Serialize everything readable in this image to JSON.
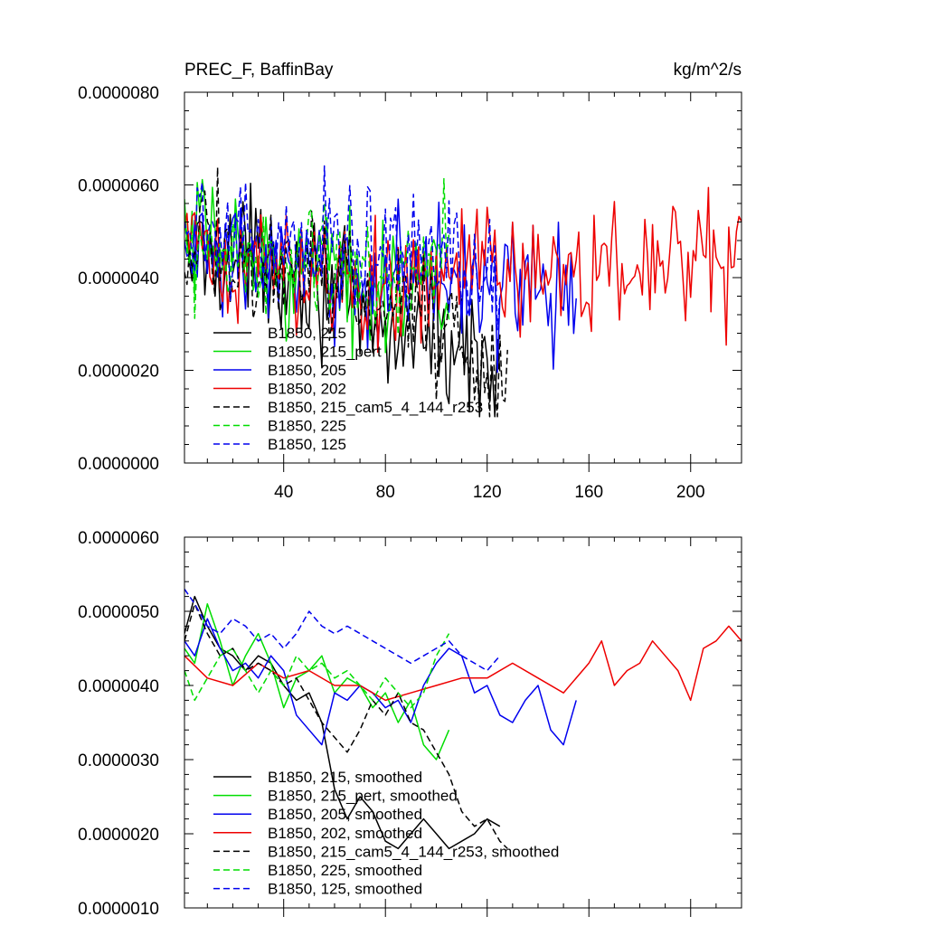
{
  "colors": {
    "black": "#000000",
    "green": "#00dd00",
    "blue": "#0000ee",
    "red": "#ee0000"
  },
  "chart_data": [
    {
      "type": "line",
      "title": "PREC_F, BaffinBay",
      "units_label": "kg/m^2/s",
      "xlabel": "",
      "ylabel": "",
      "xlim": [
        1,
        220
      ],
      "ylim": [
        0.0,
        8e-06
      ],
      "y_tick_labels": [
        "0.0000000",
        "0.0000020",
        "0.0000040",
        "0.0000060",
        "0.0000080"
      ],
      "x_tick_labels": [
        "40",
        "80",
        "120",
        "160",
        "200"
      ],
      "legend_position": "bottom-left",
      "series": [
        {
          "name": "B1850, 215",
          "color": "#000000",
          "dashed": false,
          "length": 125,
          "anchors": [
            [
              1,
              4.4e-06
            ],
            [
              10,
              4.6e-06
            ],
            [
              20,
              4.5e-06
            ],
            [
              30,
              4.4e-06
            ],
            [
              40,
              4.3e-06
            ],
            [
              50,
              4.1e-06
            ],
            [
              60,
              3.6e-06
            ],
            [
              70,
              3e-06
            ],
            [
              80,
              2.7e-06
            ],
            [
              90,
              2.9e-06
            ],
            [
              100,
              2.7e-06
            ],
            [
              110,
              2.4e-06
            ],
            [
              120,
              2.2e-06
            ],
            [
              125,
              2e-06
            ]
          ]
        },
        {
          "name": "B1850, 215_pert",
          "color": "#00dd00",
          "dashed": false,
          "length": 105,
          "anchors": [
            [
              1,
              4.5e-06
            ],
            [
              10,
              4.8e-06
            ],
            [
              20,
              4.6e-06
            ],
            [
              30,
              4.4e-06
            ],
            [
              40,
              4.3e-06
            ],
            [
              50,
              4.2e-06
            ],
            [
              60,
              4e-06
            ],
            [
              70,
              4.1e-06
            ],
            [
              80,
              3.9e-06
            ],
            [
              90,
              3.8e-06
            ],
            [
              100,
              3.6e-06
            ],
            [
              105,
              3.5e-06
            ]
          ]
        },
        {
          "name": "B1850, 205",
          "color": "#0000ee",
          "dashed": false,
          "length": 155,
          "anchors": [
            [
              1,
              4.6e-06
            ],
            [
              10,
              4.6e-06
            ],
            [
              20,
              4.4e-06
            ],
            [
              30,
              4.3e-06
            ],
            [
              40,
              4.2e-06
            ],
            [
              50,
              3.8e-06
            ],
            [
              60,
              4e-06
            ],
            [
              70,
              4e-06
            ],
            [
              80,
              3.9e-06
            ],
            [
              90,
              4e-06
            ],
            [
              100,
              4.1e-06
            ],
            [
              110,
              4.2e-06
            ],
            [
              120,
              3.9e-06
            ],
            [
              130,
              3.7e-06
            ],
            [
              140,
              3.8e-06
            ],
            [
              150,
              3.4e-06
            ],
            [
              155,
              3.9e-06
            ]
          ]
        },
        {
          "name": "B1850, 202",
          "color": "#ee0000",
          "dashed": false,
          "length": 220,
          "anchors": [
            [
              1,
              4.5e-06
            ],
            [
              10,
              4.4e-06
            ],
            [
              20,
              4.2e-06
            ],
            [
              30,
              4.3e-06
            ],
            [
              40,
              4.1e-06
            ],
            [
              50,
              4.2e-06
            ],
            [
              60,
              4e-06
            ],
            [
              70,
              4.1e-06
            ],
            [
              80,
              3.9e-06
            ],
            [
              90,
              3.9e-06
            ],
            [
              100,
              4e-06
            ],
            [
              110,
              4.1e-06
            ],
            [
              120,
              4.2e-06
            ],
            [
              130,
              4.3e-06
            ],
            [
              140,
              4.1e-06
            ],
            [
              150,
              4e-06
            ],
            [
              160,
              4.2e-06
            ],
            [
              170,
              4.3e-06
            ],
            [
              180,
              4.2e-06
            ],
            [
              190,
              4.3e-06
            ],
            [
              200,
              4.1e-06
            ],
            [
              210,
              4.4e-06
            ],
            [
              220,
              4.6e-06
            ]
          ]
        },
        {
          "name": "B1850, 215_cam5_4_144_r253",
          "color": "#000000",
          "dashed": true,
          "length": 128,
          "anchors": [
            [
              1,
              4.6e-06
            ],
            [
              10,
              4.8e-06
            ],
            [
              20,
              4.5e-06
            ],
            [
              30,
              4.3e-06
            ],
            [
              40,
              4.1e-06
            ],
            [
              50,
              4.2e-06
            ],
            [
              60,
              3.9e-06
            ],
            [
              70,
              3.5e-06
            ],
            [
              80,
              3.6e-06
            ],
            [
              90,
              3.4e-06
            ],
            [
              100,
              3e-06
            ],
            [
              110,
              2.4e-06
            ],
            [
              120,
              2e-06
            ],
            [
              128,
              1.8e-06
            ]
          ]
        },
        {
          "name": "B1850, 225",
          "color": "#00dd00",
          "dashed": true,
          "length": 105,
          "anchors": [
            [
              1,
              4.3e-06
            ],
            [
              10,
              4.2e-06
            ],
            [
              20,
              4.4e-06
            ],
            [
              30,
              4.2e-06
            ],
            [
              40,
              4.3e-06
            ],
            [
              50,
              4.4e-06
            ],
            [
              60,
              4.1e-06
            ],
            [
              70,
              4.2e-06
            ],
            [
              80,
              4.1e-06
            ],
            [
              90,
              3.9e-06
            ],
            [
              100,
              4.4e-06
            ],
            [
              105,
              4.6e-06
            ]
          ]
        },
        {
          "name": "B1850, 125",
          "color": "#0000ee",
          "dashed": true,
          "length": 125,
          "anchors": [
            [
              1,
              5e-06
            ],
            [
              10,
              4.9e-06
            ],
            [
              20,
              4.8e-06
            ],
            [
              30,
              4.7e-06
            ],
            [
              40,
              4.7e-06
            ],
            [
              50,
              4.9e-06
            ],
            [
              60,
              4.8e-06
            ],
            [
              70,
              4.7e-06
            ],
            [
              80,
              4.6e-06
            ],
            [
              90,
              4.5e-06
            ],
            [
              100,
              4.5e-06
            ],
            [
              110,
              4.4e-06
            ],
            [
              120,
              4.3e-06
            ],
            [
              125,
              4.3e-06
            ]
          ]
        }
      ]
    },
    {
      "type": "line",
      "title": "",
      "xlabel": "",
      "ylabel": "",
      "xlim": [
        1,
        220
      ],
      "ylim": [
        1e-06,
        6e-06
      ],
      "y_tick_labels": [
        "0.0000010",
        "0.0000020",
        "0.0000030",
        "0.0000040",
        "0.0000050",
        "0.0000060"
      ],
      "legend_position": "bottom-left",
      "series": [
        {
          "name": "B1850, 215, smoothed",
          "color": "#000000",
          "dashed": false,
          "length": 125,
          "x": [
            1,
            5,
            10,
            15,
            20,
            25,
            30,
            35,
            40,
            45,
            50,
            55,
            60,
            65,
            70,
            75,
            80,
            85,
            90,
            95,
            100,
            105,
            110,
            115,
            120,
            125
          ],
          "y": [
            4.7e-06,
            5.2e-06,
            4.8e-06,
            4.5e-06,
            4.4e-06,
            4.2e-06,
            4.4e-06,
            4.3e-06,
            4e-06,
            3.8e-06,
            3.9e-06,
            3.5e-06,
            2.6e-06,
            2.2e-06,
            2.5e-06,
            2.3e-06,
            1.9e-06,
            1.8e-06,
            2e-06,
            2.2e-06,
            2e-06,
            1.8e-06,
            1.9e-06,
            2e-06,
            2.2e-06,
            2.1e-06
          ]
        },
        {
          "name": "B1850, 215_pert, smoothed",
          "color": "#00dd00",
          "dashed": false,
          "length": 105,
          "x": [
            1,
            5,
            10,
            15,
            20,
            25,
            30,
            35,
            40,
            45,
            50,
            55,
            60,
            65,
            70,
            75,
            80,
            85,
            90,
            95,
            100,
            105
          ],
          "y": [
            4.5e-06,
            4.3e-06,
            5.1e-06,
            4.6e-06,
            4e-06,
            4.4e-06,
            4.7e-06,
            4.3e-06,
            3.7e-06,
            4.1e-06,
            4.2e-06,
            4.4e-06,
            3.9e-06,
            4.1e-06,
            4e-06,
            3.7e-06,
            3.9e-06,
            3.5e-06,
            3.8e-06,
            3.2e-06,
            3e-06,
            3.4e-06
          ]
        },
        {
          "name": "B1850, 205, smoothed",
          "color": "#0000ee",
          "dashed": false,
          "length": 155,
          "x": [
            1,
            5,
            10,
            15,
            20,
            25,
            30,
            35,
            40,
            45,
            50,
            55,
            60,
            65,
            70,
            75,
            80,
            85,
            90,
            95,
            100,
            105,
            110,
            115,
            120,
            125,
            130,
            135,
            140,
            145,
            150,
            155
          ],
          "y": [
            4.6e-06,
            4.4e-06,
            4.9e-06,
            4.5e-06,
            4.2e-06,
            4.3e-06,
            4.1e-06,
            4.4e-06,
            4.2e-06,
            3.6e-06,
            3.4e-06,
            3.2e-06,
            3.9e-06,
            3.8e-06,
            4e-06,
            3.9e-06,
            3.7e-06,
            3.8e-06,
            3.5e-06,
            4e-06,
            4.3e-06,
            4.5e-06,
            4.4e-06,
            3.9e-06,
            4e-06,
            3.6e-06,
            3.5e-06,
            3.8e-06,
            4e-06,
            3.4e-06,
            3.2e-06,
            3.8e-06
          ]
        },
        {
          "name": "B1850, 202, smoothed",
          "color": "#ee0000",
          "dashed": false,
          "length": 220,
          "x": [
            1,
            10,
            20,
            30,
            40,
            50,
            60,
            70,
            80,
            90,
            100,
            110,
            120,
            130,
            140,
            150,
            160,
            165,
            170,
            175,
            180,
            185,
            190,
            195,
            200,
            205,
            210,
            215,
            220
          ],
          "y": [
            4.4e-06,
            4.1e-06,
            4e-06,
            4.3e-06,
            4.1e-06,
            4.2e-06,
            4e-06,
            4e-06,
            3.8e-06,
            3.9e-06,
            4e-06,
            4.1e-06,
            4.1e-06,
            4.3e-06,
            4.1e-06,
            3.9e-06,
            4.3e-06,
            4.6e-06,
            4e-06,
            4.2e-06,
            4.3e-06,
            4.6e-06,
            4.4e-06,
            4.2e-06,
            3.8e-06,
            4.5e-06,
            4.6e-06,
            4.8e-06,
            4.6e-06
          ]
        },
        {
          "name": "B1850, 215_cam5_4_144_r253, smoothed",
          "color": "#000000",
          "dashed": true,
          "length": 128,
          "x": [
            1,
            5,
            10,
            15,
            20,
            25,
            30,
            35,
            40,
            45,
            50,
            55,
            60,
            65,
            70,
            75,
            80,
            85,
            90,
            95,
            100,
            105,
            110,
            115,
            120,
            125,
            128
          ],
          "y": [
            4.6e-06,
            5.1e-06,
            4.7e-06,
            4.4e-06,
            4.5e-06,
            4.2e-06,
            4.3e-06,
            4.2e-06,
            4e-06,
            4.1e-06,
            3.8e-06,
            3.5e-06,
            3.3e-06,
            3.1e-06,
            3.4e-06,
            3.8e-06,
            3.6e-06,
            3.9e-06,
            3.5e-06,
            3.4e-06,
            3.1e-06,
            2.8e-06,
            2.3e-06,
            2.1e-06,
            2.2e-06,
            1.9e-06,
            1.8e-06
          ]
        },
        {
          "name": "B1850, 225, smoothed",
          "color": "#00dd00",
          "dashed": true,
          "length": 105,
          "x": [
            1,
            5,
            10,
            15,
            20,
            25,
            30,
            35,
            40,
            45,
            50,
            55,
            60,
            65,
            70,
            75,
            80,
            85,
            90,
            95,
            100,
            105
          ],
          "y": [
            4.2e-06,
            3.8e-06,
            4.1e-06,
            4.4e-06,
            4.5e-06,
            4.2e-06,
            3.9e-06,
            4.2e-06,
            4e-06,
            4.4e-06,
            4.2e-06,
            4.3e-06,
            4.1e-06,
            4.2e-06,
            4e-06,
            3.8e-06,
            4.1e-06,
            3.9e-06,
            3.7e-06,
            3.9e-06,
            4.4e-06,
            4.7e-06
          ]
        },
        {
          "name": "B1850, 125, smoothed",
          "color": "#0000ee",
          "dashed": true,
          "length": 125,
          "x": [
            1,
            5,
            10,
            15,
            20,
            25,
            30,
            35,
            40,
            45,
            50,
            55,
            60,
            65,
            70,
            75,
            80,
            85,
            90,
            95,
            100,
            105,
            110,
            115,
            120,
            125
          ],
          "y": [
            5.3e-06,
            5.1e-06,
            4.8e-06,
            4.7e-06,
            4.9e-06,
            4.8e-06,
            4.6e-06,
            4.7e-06,
            4.5e-06,
            4.7e-06,
            5e-06,
            4.8e-06,
            4.7e-06,
            4.8e-06,
            4.7e-06,
            4.6e-06,
            4.5e-06,
            4.4e-06,
            4.3e-06,
            4.4e-06,
            4.5e-06,
            4.6e-06,
            4.4e-06,
            4.3e-06,
            4.2e-06,
            4.4e-06
          ]
        }
      ]
    }
  ]
}
